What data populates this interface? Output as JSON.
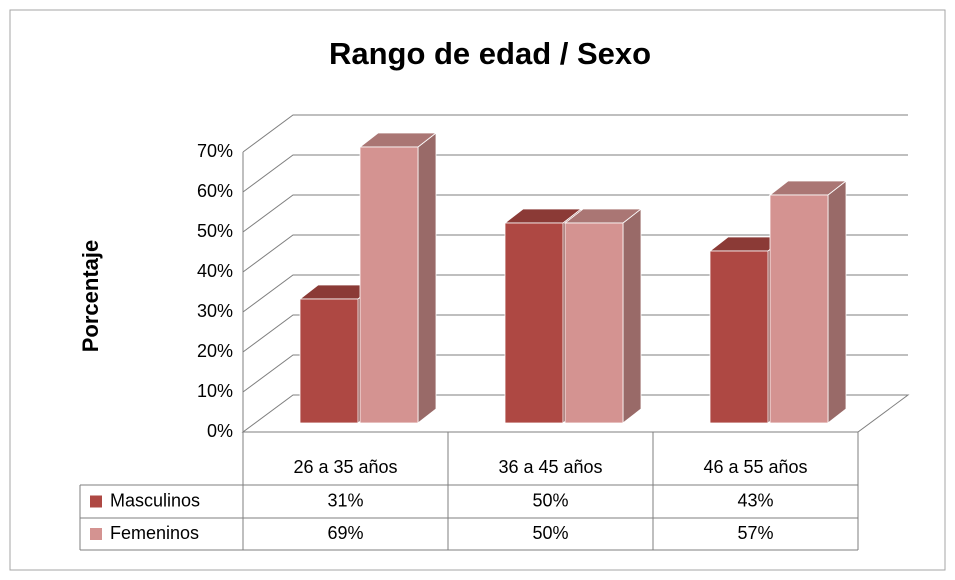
{
  "chart_data": {
    "type": "bar3d",
    "title": "Rango de edad / Sexo",
    "y_label": "Porcentaje",
    "categories": [
      "26 a 35 años",
      "36 a 45 años",
      "46 a 55 años"
    ],
    "series": [
      {
        "name": "Masculinos",
        "color": "#ae4843",
        "values": [
          31,
          50,
          43
        ],
        "value_labels": [
          "31%",
          "50%",
          "43%"
        ]
      },
      {
        "name": "Femeninos",
        "color": "#d49391",
        "values": [
          69,
          50,
          57
        ],
        "value_labels": [
          "69%",
          "50%",
          "57%"
        ]
      }
    ],
    "ylim": [
      0,
      70
    ],
    "yticks": [
      {
        "value": 0,
        "label": "0%"
      },
      {
        "value": 10,
        "label": "10%"
      },
      {
        "value": 20,
        "label": "20%"
      },
      {
        "value": 30,
        "label": "30%"
      },
      {
        "value": 40,
        "label": "40%"
      },
      {
        "value": 50,
        "label": "50%"
      },
      {
        "value": 60,
        "label": "60%"
      },
      {
        "value": 70,
        "label": "70%"
      }
    ],
    "grid": true
  }
}
